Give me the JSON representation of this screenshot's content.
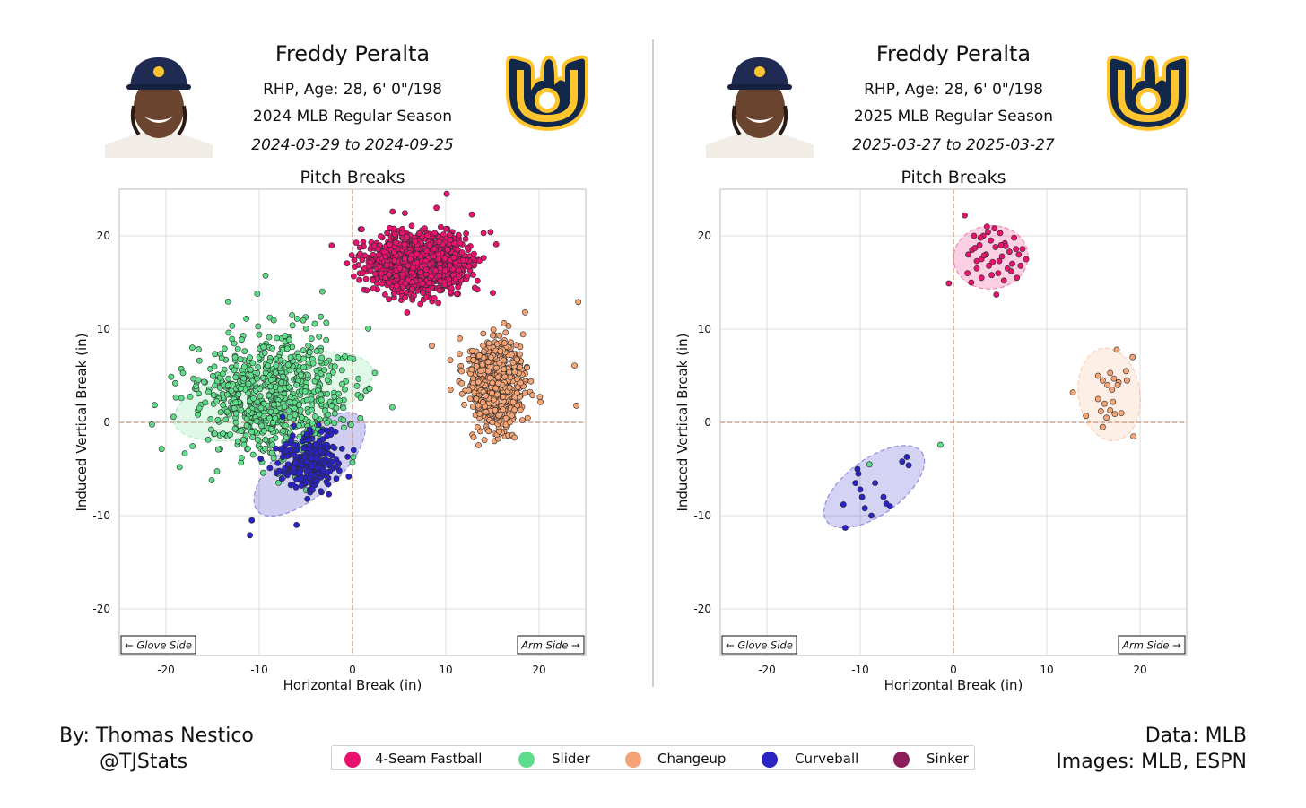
{
  "panels": [
    {
      "name": "Freddy Peralta",
      "info_line1": "RHP, Age: 28, 6' 0\"/198",
      "info_line2": "2024 MLB Regular Season",
      "date_range": "2024-03-29 to 2024-09-25",
      "title": "Pitch Breaks"
    },
    {
      "name": "Freddy Peralta",
      "info_line1": "RHP, Age: 28, 6' 0\"/198",
      "info_line2": "2025 MLB Regular Season",
      "date_range": "2025-03-27 to 2025-03-27",
      "title": "Pitch Breaks"
    }
  ],
  "credits": {
    "by": "By: Thomas Nestico",
    "handle": "@TJStats",
    "data": "Data: MLB",
    "images": "Images: MLB, ESPN"
  },
  "legend": [
    {
      "label": "4-Seam Fastball",
      "color": "#e8136f"
    },
    {
      "label": "Slider",
      "color": "#5fdc8a"
    },
    {
      "label": "Changeup",
      "color": "#f4a374"
    },
    {
      "label": "Curveball",
      "color": "#2a24c4"
    },
    {
      "label": "Sinker",
      "color": "#8c1b5a"
    }
  ],
  "logo_colors": {
    "navy": "#12284b",
    "gold": "#ffc52f"
  },
  "chart_data": [
    {
      "type": "scatter",
      "title": "Pitch Breaks",
      "xlabel": "Horizontal Break (in)",
      "ylabel": "Induced Vertical Break (in)",
      "xlim": [
        -25,
        25
      ],
      "ylim": [
        -25,
        25
      ],
      "xticks": [
        -20,
        -10,
        0,
        10,
        20
      ],
      "yticks": [
        -20,
        -10,
        0,
        10,
        20
      ],
      "grid": true,
      "reference_lines": {
        "x": 0,
        "y": 0,
        "style": "dashed",
        "color": "#c8916b"
      },
      "annotations": [
        "← Glove Side",
        "Arm Side →"
      ],
      "series": [
        {
          "name": "4-Seam Fastball",
          "color": "#e8136f",
          "n": 1300,
          "mean": [
            7.0,
            17.0
          ],
          "sd": [
            2.6,
            1.5
          ],
          "ellipse": null,
          "outliers": [
            [
              10.1,
              24.5
            ],
            [
              15.4,
              19.1
            ],
            [
              12.8,
              22.3
            ],
            [
              4.3,
              22.6
            ],
            [
              9.0,
              23.0
            ],
            [
              1.0,
              20.7
            ],
            [
              14.8,
              20.4
            ],
            [
              3.9,
              13.2
            ]
          ]
        },
        {
          "name": "Slider",
          "color": "#5fdc8a",
          "n": 750,
          "mean": [
            -8.5,
            2.8
          ],
          "sd": [
            4.2,
            3.4
          ],
          "ellipse": {
            "cx": -8.5,
            "cy": 2.8,
            "rx": 11.0,
            "ry": 4.0,
            "angle": 15,
            "opacity": 0.2
          },
          "outliers": [
            [
              -10.2,
              13.8
            ],
            [
              -19.2,
              0.6
            ],
            [
              -19.0,
              4.2
            ],
            [
              -15.1,
              -6.2
            ],
            [
              2.4,
              5.3
            ]
          ]
        },
        {
          "name": "Changeup",
          "color": "#f4a374",
          "n": 650,
          "mean": [
            15.5,
            4.0
          ],
          "sd": [
            1.5,
            2.2
          ],
          "ellipse": null,
          "outliers": [
            [
              24.2,
              12.9
            ],
            [
              23.8,
              6.1
            ],
            [
              24.0,
              1.8
            ],
            [
              8.5,
              8.2
            ],
            [
              11.5,
              9.0
            ],
            [
              10.5,
              3.5
            ],
            [
              18.5,
              11.8
            ]
          ]
        },
        {
          "name": "Curveball",
          "color": "#2a24c4",
          "n": 230,
          "mean": [
            -4.5,
            -4.2
          ],
          "sd": [
            1.7,
            1.6
          ],
          "ellipse": {
            "cx": -4.6,
            "cy": -4.5,
            "rx": 7.5,
            "ry": 3.2,
            "angle": 42,
            "opacity": 0.22
          },
          "outliers": [
            [
              -11.0,
              -12.1
            ],
            [
              -10.8,
              -10.5
            ],
            [
              -6.0,
              -11.0
            ],
            [
              -7.5,
              0.6
            ],
            [
              -0.4,
              -5.8
            ]
          ]
        }
      ]
    },
    {
      "type": "scatter",
      "title": "Pitch Breaks",
      "xlabel": "Horizontal Break (in)",
      "ylabel": "Induced Vertical Break (in)",
      "xlim": [
        -25,
        25
      ],
      "ylim": [
        -25,
        25
      ],
      "xticks": [
        -20,
        -10,
        0,
        10,
        20
      ],
      "yticks": [
        -20,
        -10,
        0,
        10,
        20
      ],
      "grid": true,
      "reference_lines": {
        "x": 0,
        "y": 0,
        "style": "dashed",
        "color": "#c8916b"
      },
      "annotations": [
        "← Glove Side",
        "Arm Side →"
      ],
      "series": [
        {
          "name": "4-Seam Fastball",
          "color": "#e8136f",
          "ellipse": {
            "cx": 4.0,
            "cy": 17.7,
            "rx": 4.0,
            "ry": 3.4,
            "angle": 5,
            "opacity": 0.2
          },
          "points": [
            [
              1.2,
              22.2
            ],
            [
              -0.5,
              14.9
            ],
            [
              2.0,
              18.5
            ],
            [
              2.5,
              16.5
            ],
            [
              2.8,
              19.0
            ],
            [
              3.0,
              17.5
            ],
            [
              3.2,
              20.0
            ],
            [
              3.5,
              18.0
            ],
            [
              3.8,
              16.8
            ],
            [
              4.0,
              19.5
            ],
            [
              4.2,
              17.2
            ],
            [
              4.5,
              18.8
            ],
            [
              4.8,
              16.0
            ],
            [
              5.0,
              20.3
            ],
            [
              5.2,
              17.8
            ],
            [
              5.5,
              19.2
            ],
            [
              5.8,
              16.5
            ],
            [
              6.0,
              18.3
            ],
            [
              6.3,
              17.0
            ],
            [
              6.5,
              19.8
            ],
            [
              7.0,
              18.0
            ],
            [
              7.2,
              16.8
            ],
            [
              7.8,
              17.5
            ],
            [
              1.5,
              16.0
            ],
            [
              2.2,
              20.0
            ],
            [
              3.0,
              15.5
            ],
            [
              4.6,
              13.7
            ],
            [
              6.8,
              15.5
            ],
            [
              5.4,
              15.2
            ],
            [
              1.6,
              18.0
            ],
            [
              2.5,
              17.3
            ],
            [
              3.6,
              21.0
            ],
            [
              4.4,
              20.8
            ],
            [
              5.6,
              18.9
            ],
            [
              6.7,
              18.6
            ],
            [
              2.9,
              19.8
            ],
            [
              1.9,
              15.0
            ],
            [
              3.3,
              17.9
            ],
            [
              4.1,
              15.8
            ],
            [
              6.2,
              16.2
            ],
            [
              7.4,
              18.6
            ],
            [
              5.1,
              19.0
            ],
            [
              3.7,
              20.4
            ],
            [
              2.3,
              18.7
            ],
            [
              4.9,
              17.3
            ]
          ]
        },
        {
          "name": "Slider",
          "color": "#5fdc8a",
          "ellipse": null,
          "points": [
            [
              -1.4,
              -2.4
            ],
            [
              -9.0,
              -4.5
            ]
          ]
        },
        {
          "name": "Changeup",
          "color": "#f4a374",
          "ellipse": {
            "cx": 16.7,
            "cy": 3.0,
            "rx": 3.3,
            "ry": 5.0,
            "angle": 8,
            "opacity": 0.18
          },
          "points": [
            [
              17.5,
              7.8
            ],
            [
              19.2,
              7.0
            ],
            [
              18.5,
              5.5
            ],
            [
              15.5,
              5.0
            ],
            [
              16.8,
              5.3
            ],
            [
              17.2,
              4.7
            ],
            [
              17.7,
              4.3
            ],
            [
              18.6,
              4.5
            ],
            [
              16.0,
              4.5
            ],
            [
              16.5,
              4.0
            ],
            [
              17.0,
              3.5
            ],
            [
              12.8,
              3.2
            ],
            [
              15.5,
              2.5
            ],
            [
              16.2,
              2.0
            ],
            [
              17.1,
              2.2
            ],
            [
              15.8,
              1.2
            ],
            [
              16.8,
              1.3
            ],
            [
              17.3,
              0.9
            ],
            [
              16.4,
              0.5
            ],
            [
              14.2,
              0.7
            ],
            [
              18.0,
              1.0
            ],
            [
              16.0,
              -0.5
            ],
            [
              19.3,
              -1.5
            ],
            [
              17.6,
              4.0
            ]
          ]
        },
        {
          "name": "Curveball",
          "color": "#2a24c4",
          "ellipse": {
            "cx": -8.5,
            "cy": -6.9,
            "rx": 6.3,
            "ry": 3.0,
            "angle": 36,
            "opacity": 0.2
          },
          "points": [
            [
              -11.6,
              -11.3
            ],
            [
              -11.8,
              -8.8
            ],
            [
              -10.2,
              -5.5
            ],
            [
              -10.5,
              -6.5
            ],
            [
              -10.0,
              -7.2
            ],
            [
              -9.8,
              -8.0
            ],
            [
              -8.4,
              -6.5
            ],
            [
              -7.5,
              -8.0
            ],
            [
              -7.2,
              -8.7
            ],
            [
              -9.5,
              -9.2
            ],
            [
              -6.8,
              -9.0
            ],
            [
              -5.5,
              -4.2
            ],
            [
              -5.0,
              -3.7
            ],
            [
              -4.8,
              -4.6
            ],
            [
              -10.3,
              -5.0
            ],
            [
              -8.8,
              -10.0
            ]
          ]
        }
      ]
    }
  ]
}
